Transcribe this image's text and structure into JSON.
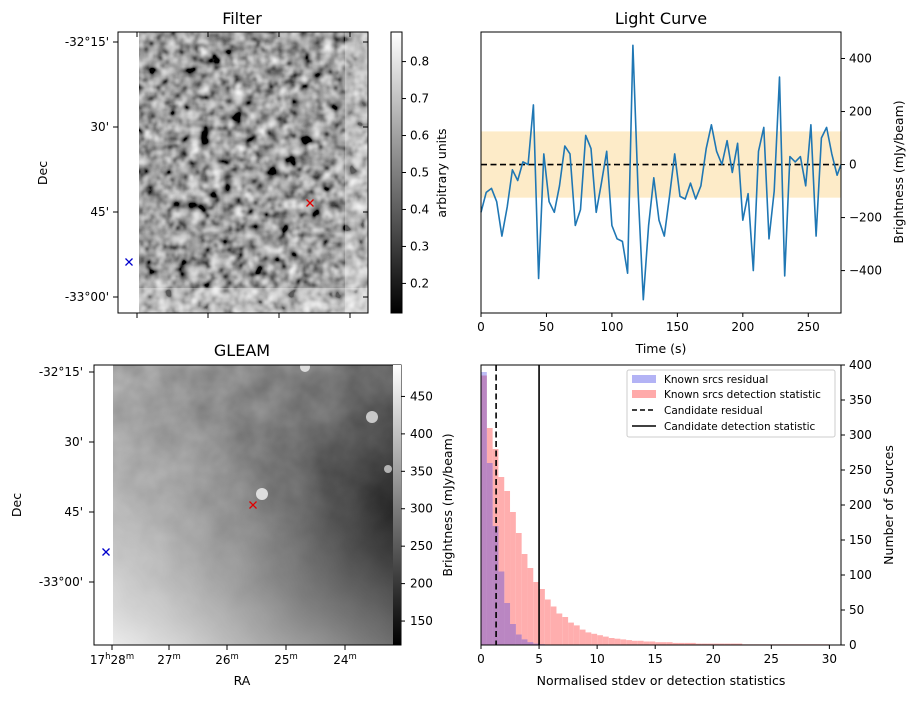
{
  "colors": {
    "line": "#1f77b4",
    "band": "#fdebc8",
    "hist_a": "#b3b3f5",
    "hist_b": "#ffaaaa",
    "marker_red": "#e00000",
    "marker_blue": "#0000cc"
  },
  "chart_data": [
    {
      "type": "heatmap",
      "panel": "filter",
      "title": "Filter",
      "ylabel": "Dec",
      "yticks": [
        "-32°15'",
        "30'",
        "45'",
        "-33°00'"
      ],
      "colorbar": {
        "label": "arbitrary units",
        "ticks": [
          "0.8",
          "0.7",
          "0.6",
          "0.5",
          "0.4",
          "0.3",
          "0.2"
        ],
        "range": [
          0.12,
          0.88
        ]
      },
      "markers": [
        {
          "symbol": "x",
          "color": "red"
        },
        {
          "symbol": "x",
          "color": "blue"
        }
      ]
    },
    {
      "type": "line",
      "panel": "lightcurve",
      "title": "Light Curve",
      "xlabel": "Time (s)",
      "ylabel": "Brightness (mJy/beam)",
      "xlim": [
        0,
        275
      ],
      "ylim": [
        -560,
        500
      ],
      "xticks": [
        "0",
        "50",
        "100",
        "150",
        "200",
        "250"
      ],
      "yticks": [
        "400",
        "200",
        "0",
        "−200",
        "−400"
      ],
      "band": [
        -125,
        125
      ],
      "hline": 0,
      "x": [
        0,
        4,
        8,
        12,
        16,
        20,
        24,
        28,
        32,
        36,
        40,
        44,
        48,
        52,
        56,
        60,
        64,
        68,
        72,
        76,
        80,
        84,
        88,
        92,
        96,
        100,
        104,
        108,
        112,
        116,
        120,
        124,
        128,
        132,
        136,
        140,
        144,
        148,
        152,
        156,
        160,
        164,
        168,
        172,
        176,
        180,
        184,
        188,
        192,
        196,
        200,
        204,
        208,
        212,
        216,
        220,
        224,
        228,
        232,
        236,
        240,
        244,
        248,
        252,
        256,
        260,
        264,
        268,
        272,
        275
      ],
      "y": [
        -180,
        -105,
        -90,
        -140,
        -270,
        -160,
        -20,
        -60,
        10,
        0,
        225,
        -430,
        40,
        -140,
        -180,
        -80,
        70,
        40,
        -230,
        -170,
        110,
        60,
        -180,
        -70,
        50,
        -230,
        -280,
        -290,
        -410,
        450,
        -100,
        -510,
        -230,
        -50,
        -210,
        -270,
        -120,
        40,
        -120,
        -130,
        -70,
        -130,
        -80,
        60,
        150,
        50,
        0,
        90,
        -30,
        80,
        -210,
        -110,
        -400,
        50,
        140,
        -280,
        -100,
        330,
        -420,
        30,
        10,
        30,
        -80,
        150,
        -270,
        100,
        140,
        40,
        -40,
        0
      ]
    },
    {
      "type": "heatmap",
      "panel": "gleam",
      "title": "GLEAM",
      "xlabel": "RA",
      "ylabel": "Dec",
      "xticks": [
        "17h28m",
        "27m",
        "26m",
        "25m",
        "24m"
      ],
      "yticks": [
        "-32°15'",
        "30'",
        "45'",
        "-33°00'"
      ],
      "colorbar": {
        "label": "Brightness (mJy/beam)",
        "ticks": [
          "450",
          "400",
          "350",
          "300",
          "250",
          "200",
          "150"
        ],
        "range": [
          118,
          492
        ]
      },
      "markers": [
        {
          "symbol": "x",
          "color": "red"
        },
        {
          "symbol": "x",
          "color": "blue"
        }
      ]
    },
    {
      "type": "bar",
      "panel": "histogram",
      "xlabel": "Normalised stdev or detection statistics",
      "ylabel": "Number of Sources",
      "xlim": [
        0,
        31
      ],
      "ylim": [
        0,
        400
      ],
      "xticks": [
        "0",
        "5",
        "10",
        "15",
        "20",
        "25",
        "30"
      ],
      "yticks": [
        "400",
        "350",
        "300",
        "250",
        "200",
        "150",
        "100",
        "50",
        "0"
      ],
      "bin_width": 0.5,
      "series": [
        {
          "name": "Known srcs residual",
          "values": [
            390,
            260,
            170,
            105,
            60,
            30,
            15,
            8,
            4,
            2,
            1
          ]
        },
        {
          "name": "Known srcs detection statistic",
          "values": [
            385,
            310,
            280,
            240,
            220,
            190,
            160,
            130,
            110,
            90,
            80,
            65,
            55,
            45,
            40,
            32,
            28,
            22,
            18,
            16,
            14,
            12,
            10,
            9,
            8,
            7,
            6,
            6,
            5,
            5,
            4,
            4,
            4,
            3,
            3,
            3,
            3,
            2,
            2,
            2,
            2,
            2,
            2,
            2,
            2,
            1,
            1,
            1,
            1,
            1,
            1,
            1,
            1,
            1,
            1,
            1,
            1,
            1,
            1,
            1
          ]
        }
      ],
      "vlines": [
        {
          "name": "Candidate residual",
          "x": 1.3,
          "style": "dashed"
        },
        {
          "name": "Candidate detection statistic",
          "x": 5.0,
          "style": "solid"
        }
      ]
    }
  ]
}
